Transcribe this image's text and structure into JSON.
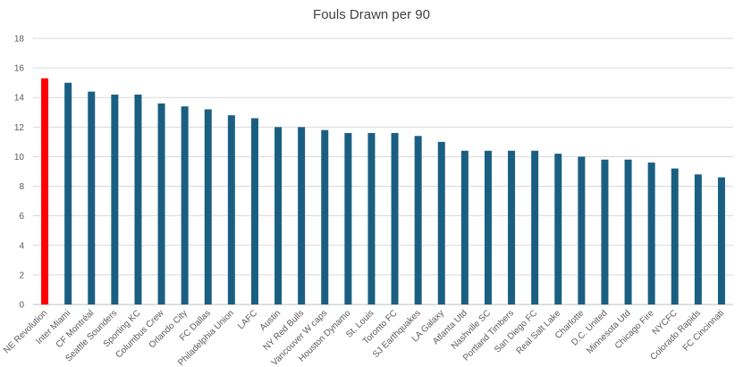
{
  "chart_data": {
    "type": "bar",
    "title": "Fouls Drawn per 90",
    "xlabel": "",
    "ylabel": "",
    "ylim": [
      0,
      18
    ],
    "yticks": [
      0,
      2,
      4,
      6,
      8,
      10,
      12,
      14,
      16,
      18
    ],
    "grid": true,
    "legend": "none",
    "colors": {
      "default": "#1a5f82",
      "highlight": "#ff0000"
    },
    "highlight_index": 0,
    "categories": [
      "NE Revolution",
      "Inter Miami",
      "CF Montréal",
      "Seattle Sounders",
      "Sporting KC",
      "Columbus Crew",
      "Orlando City",
      "FC Dallas",
      "Philadelphia Union",
      "LAFC",
      "Austin",
      "NY Red Bulls",
      "Vancouver W caps",
      "Houston Dynamo",
      "St. Louis",
      "Toronto FC",
      "SJ Earthquakes",
      "LA Galaxy",
      "Atlanta Utd",
      "Nashville SC",
      "Portland Timbers",
      "San Diego FC",
      "Real Salt Lake",
      "Charlotte",
      "D.C. United",
      "Minnesota Utd",
      "Chicago Fire",
      "NYCFC",
      "Colorado Rapids",
      "FC Cincinnati"
    ],
    "values": [
      15.3,
      15.0,
      14.4,
      14.2,
      14.2,
      13.6,
      13.4,
      13.2,
      12.8,
      12.6,
      12.0,
      12.0,
      11.8,
      11.6,
      11.6,
      11.6,
      11.4,
      11.0,
      10.4,
      10.4,
      10.4,
      10.4,
      10.2,
      10.0,
      9.8,
      9.8,
      9.6,
      9.2,
      8.8,
      8.6
    ]
  }
}
